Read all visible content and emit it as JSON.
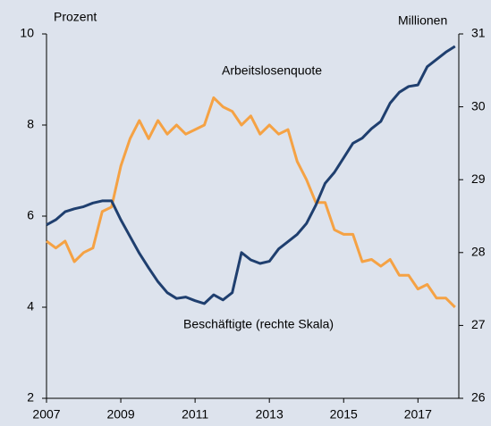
{
  "chart_data": {
    "type": "line",
    "left_axis_label": "Prozent",
    "right_axis_label": "Millionen",
    "annotations": [
      "Arbeitslosenquote",
      "Beschäftigte (rechte Skala)"
    ],
    "x": [
      2007,
      2007.25,
      2007.5,
      2007.75,
      2008,
      2008.25,
      2008.5,
      2008.75,
      2009,
      2009.25,
      2009.5,
      2009.75,
      2010,
      2010.25,
      2010.5,
      2010.75,
      2011,
      2011.25,
      2011.5,
      2011.75,
      2012,
      2012.25,
      2012.5,
      2012.75,
      2013,
      2013.25,
      2013.5,
      2013.75,
      2014,
      2014.25,
      2014.5,
      2014.75,
      2015,
      2015.25,
      2015.5,
      2015.75,
      2016,
      2016.25,
      2016.5,
      2016.75,
      2017,
      2017.25,
      2017.5,
      2017.75,
      2018
    ],
    "series": [
      {
        "name": "Arbeitslosenquote",
        "color": "#f5a244",
        "axis": "y",
        "values": [
          5.45,
          5.3,
          5.45,
          5.0,
          5.2,
          5.3,
          6.1,
          6.2,
          7.1,
          7.7,
          8.1,
          7.7,
          8.1,
          7.8,
          8.0,
          7.8,
          7.9,
          8.0,
          8.6,
          8.4,
          8.3,
          8.0,
          8.2,
          7.8,
          8.0,
          7.8,
          7.9,
          7.2,
          6.8,
          6.3,
          6.3,
          5.7,
          5.6,
          5.6,
          5.0,
          5.05,
          4.9,
          5.05,
          4.7,
          4.7,
          4.4,
          4.5,
          4.2,
          4.2,
          4.0
        ]
      },
      {
        "name": "Beschäftigte",
        "color": "#1f3f6f",
        "axis": "y2",
        "values": [
          28.38,
          28.45,
          28.56,
          28.6,
          28.63,
          28.68,
          28.71,
          28.71,
          28.45,
          28.22,
          27.99,
          27.79,
          27.6,
          27.45,
          27.37,
          27.39,
          27.34,
          27.3,
          27.42,
          27.35,
          27.45,
          28.0,
          27.9,
          27.85,
          27.88,
          28.05,
          28.15,
          28.25,
          28.4,
          28.65,
          28.95,
          29.1,
          29.3,
          29.5,
          29.57,
          29.7,
          29.8,
          30.05,
          30.2,
          30.28,
          30.3,
          30.55,
          30.65,
          30.75,
          30.83
        ]
      }
    ],
    "xlim": [
      2007,
      2018.1
    ],
    "xticks": [
      2007,
      2009,
      2011,
      2013,
      2015,
      2017
    ],
    "ylim": [
      2,
      10
    ],
    "yticks": [
      2,
      4,
      6,
      8,
      10
    ],
    "y2lim": [
      26,
      31
    ],
    "y2ticks": [
      26,
      27,
      28,
      29,
      30,
      31
    ]
  }
}
